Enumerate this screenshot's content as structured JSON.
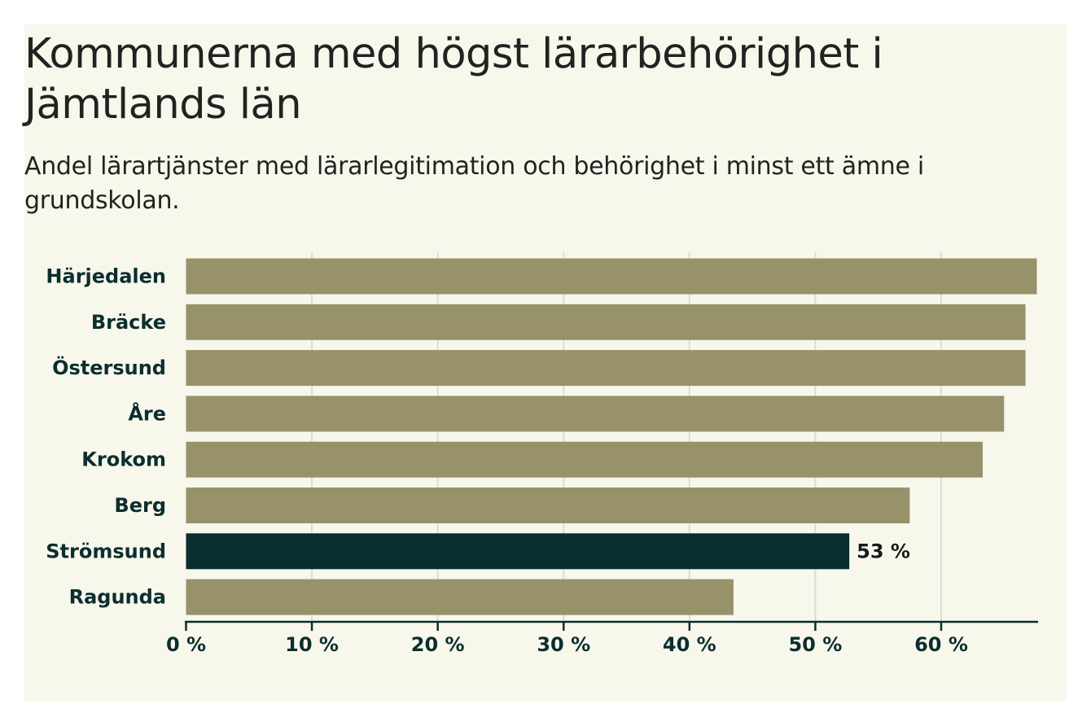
{
  "chart_data": {
    "type": "bar",
    "orientation": "horizontal",
    "title": "Kommunerna med högst lärarbehörighet i Jämtlands län",
    "subtitle": "Andel lärartjänster med lärarlegitimation och behörighet i minst ett ämne i grundskolan.",
    "categories": [
      "Härjedalen",
      "Bräcke",
      "Östersund",
      "Åre",
      "Krokom",
      "Berg",
      "Strömsund",
      "Ragunda"
    ],
    "values": [
      67.6,
      66.7,
      66.7,
      65.0,
      63.3,
      57.5,
      52.7,
      43.5
    ],
    "highlight_index": 6,
    "data_labels": [
      {
        "category": "Strömsund",
        "text": "53 %"
      }
    ],
    "xlim": [
      0,
      67.7
    ],
    "x_ticks": [
      0,
      10,
      20,
      30,
      40,
      50,
      60
    ],
    "x_tick_labels": [
      "0 %",
      "10 %",
      "20 %",
      "30 %",
      "40 %",
      "50 %",
      "60 %"
    ],
    "grid": "vertical",
    "xlabel": "",
    "ylabel": "",
    "colors": {
      "background": "#f8f7ec",
      "bar": "#98926b",
      "highlight": "#082e2e",
      "grid": "#dcdcd6",
      "axis": "#0b2e2e"
    }
  }
}
